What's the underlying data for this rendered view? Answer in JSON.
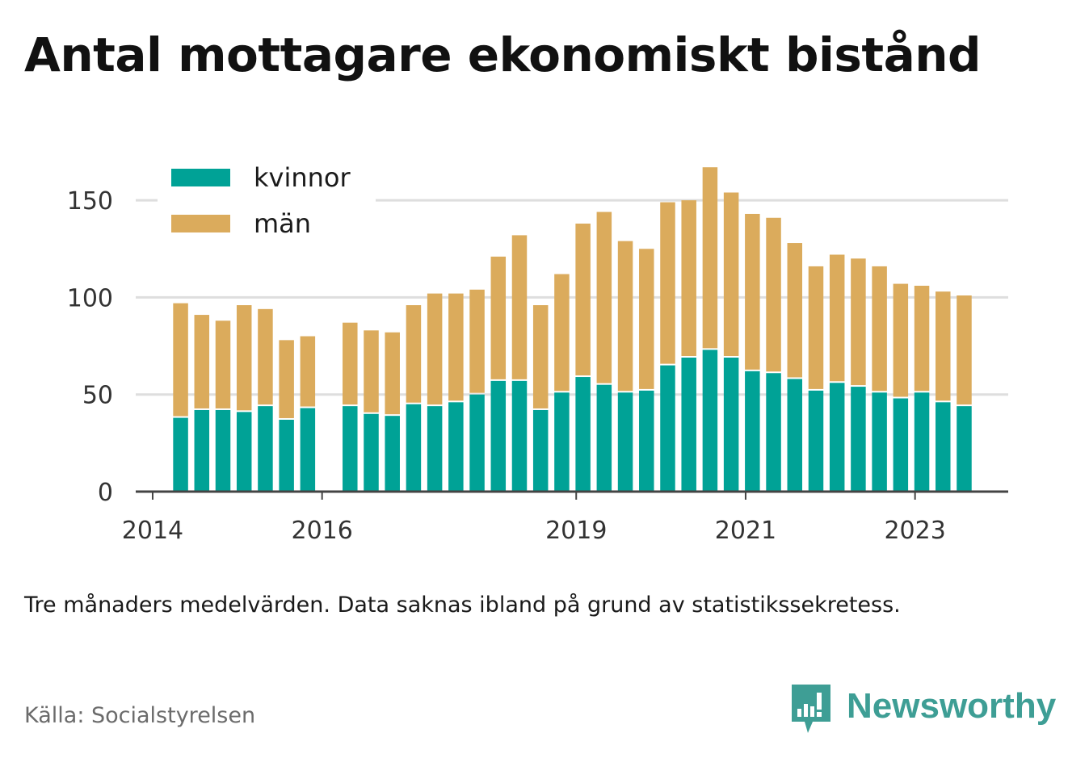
{
  "header": {
    "title": "Antal mottagare ekonomiskt bistånd"
  },
  "chart_data": {
    "type": "bar",
    "stacked": true,
    "title": "Antal mottagare ekonomiskt bistånd",
    "xlabel": "",
    "ylabel": "",
    "ylim": [
      0,
      170
    ],
    "yticks": [
      0,
      50,
      100,
      150
    ],
    "xlim": [
      2013.8,
      2024.1
    ],
    "xticks": [
      2014,
      2016,
      2019,
      2021,
      2023
    ],
    "grid": true,
    "legend_position": "top-left",
    "x": [
      2014.33,
      2014.58,
      2014.83,
      2015.08,
      2015.33,
      2015.58,
      2015.83,
      2016.33,
      2016.58,
      2016.83,
      2017.08,
      2017.33,
      2017.58,
      2017.83,
      2018.08,
      2018.33,
      2018.58,
      2018.83,
      2019.08,
      2019.33,
      2019.58,
      2019.83,
      2020.08,
      2020.33,
      2020.58,
      2020.83,
      2021.08,
      2021.33,
      2021.58,
      2021.83,
      2022.08,
      2022.33,
      2022.58,
      2022.83,
      2023.08,
      2023.33,
      2023.58
    ],
    "series": [
      {
        "name": "kvinnor",
        "color": "#00a296",
        "values": [
          38,
          42,
          42,
          41,
          44,
          37,
          43,
          44,
          40,
          39,
          45,
          44,
          46,
          50,
          57,
          57,
          42,
          51,
          59,
          55,
          51,
          52,
          65,
          69,
          73,
          69,
          62,
          61,
          58,
          52,
          56,
          54,
          51,
          48,
          51,
          46,
          44
        ]
      },
      {
        "name": "män",
        "color": "#dbab5c",
        "values": [
          59,
          49,
          46,
          55,
          50,
          41,
          37,
          43,
          43,
          43,
          51,
          58,
          56,
          54,
          64,
          75,
          54,
          61,
          79,
          89,
          78,
          73,
          84,
          81,
          94,
          85,
          81,
          80,
          70,
          64,
          66,
          66,
          65,
          59,
          55,
          57,
          57
        ]
      }
    ]
  },
  "footer": {
    "note": "Tre månaders medelvärden. Data saknas ibland på grund av statistikssekretess.",
    "source": "Källa: Socialstyrelsen",
    "brand_name": "Newsworthy",
    "brand_icon": "newsworthy-logo-icon",
    "brand_color": "#3e9e95"
  }
}
